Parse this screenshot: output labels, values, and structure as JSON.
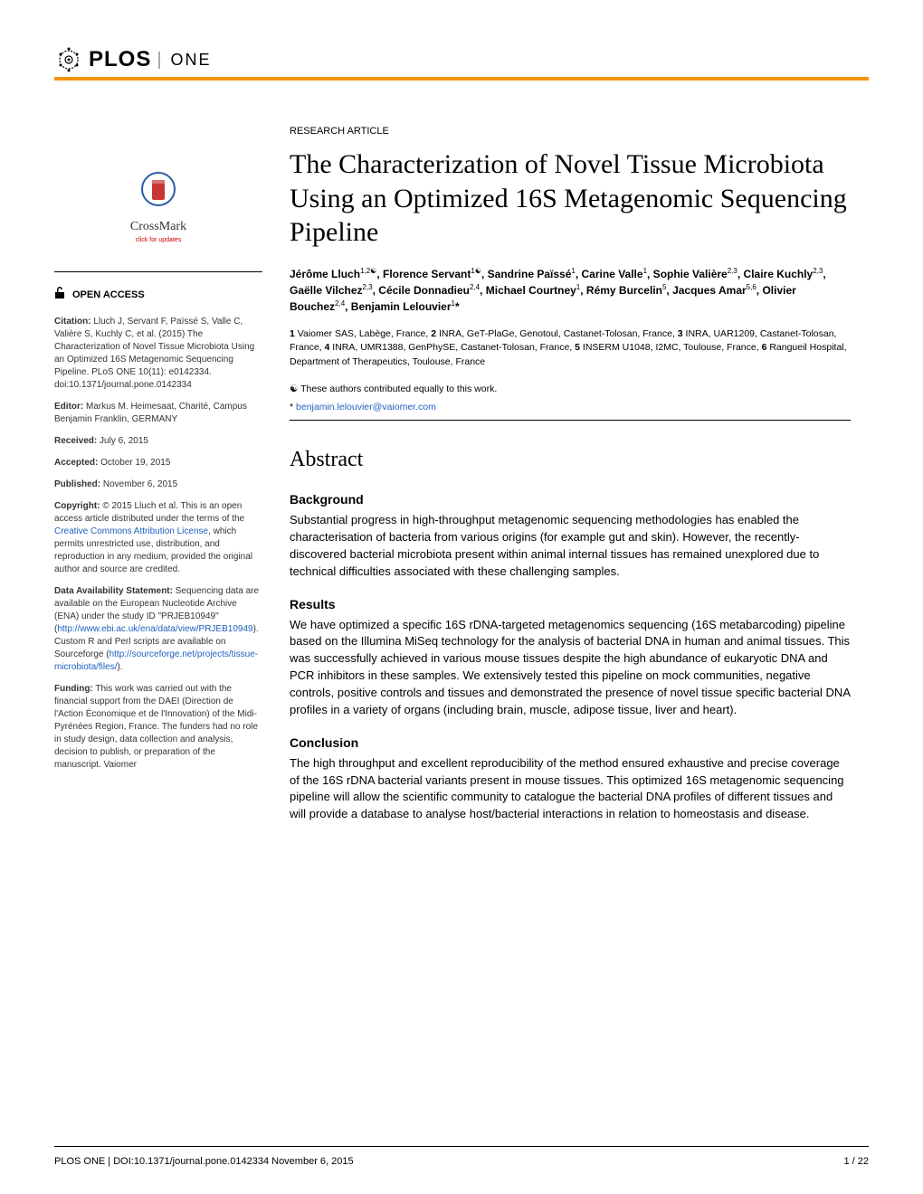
{
  "header": {
    "journal_prefix": "PLOS",
    "journal_suffix": "ONE"
  },
  "colors": {
    "orange_bar": "#f39200",
    "link": "#2060c0",
    "crossmark_red": "#c93434",
    "crossmark_blue": "#2b5ca6"
  },
  "crossmark": {
    "label": "CrossMark",
    "sublabel": "click for updates"
  },
  "open_access": {
    "label": "OPEN ACCESS"
  },
  "sidebar": {
    "citation_label": "Citation:",
    "citation_text": " Lluch J, Servant F, Païssé S, Valle C, Valière S, Kuchly C, et al. (2015) The Characterization of Novel Tissue Microbiota Using an Optimized 16S Metagenomic Sequencing Pipeline. PLoS ONE 10(11): e0142334. doi:10.1371/journal.pone.0142334",
    "editor_label": "Editor:",
    "editor_text": " Markus M. Heimesaat, Charité, Campus Benjamin Franklin, GERMANY",
    "received_label": "Received:",
    "received_text": " July 6, 2015",
    "accepted_label": "Accepted:",
    "accepted_text": " October 19, 2015",
    "published_label": "Published:",
    "published_text": " November 6, 2015",
    "copyright_label": "Copyright:",
    "copyright_text_1": " © 2015 Lluch et al. This is an open access article distributed under the terms of the ",
    "copyright_link": "Creative Commons Attribution License",
    "copyright_text_2": ", which permits unrestricted use, distribution, and reproduction in any medium, provided the original author and source are credited.",
    "data_label": "Data Availability Statement:",
    "data_text_1": " Sequencing data are available on the European Nucleotide Archive (ENA) under the study ID \"PRJEB10949\" (",
    "data_link_1": "http://www.ebi.ac.uk/ena/data/view/PRJEB10949",
    "data_text_2": "). Custom R and Perl scripts are available on Sourceforge (",
    "data_link_2": "http://sourceforge.net/projects/tissue-microbiota/files/",
    "data_text_3": ").",
    "funding_label": "Funding:",
    "funding_text": " This work was carried out with the financial support from the DAEI (Direction de l'Action Économique et de l'Innovation) of the Midi-Pyrénées Region, France. The funders had no role in study design, data collection and analysis, decision to publish, or preparation of the manuscript. Vaiomer"
  },
  "article": {
    "type": "RESEARCH ARTICLE",
    "title": "The Characterization of Novel Tissue Microbiota Using an Optimized 16S Metagenomic Sequencing Pipeline",
    "authors_html": "Jérôme Lluch<sup>1,2☯</sup>, Florence Servant<sup>1☯</sup>, Sandrine Païssé<sup>1</sup>, Carine Valle<sup>1</sup>, Sophie Valière<sup>2,3</sup>, Claire Kuchly<sup>2,3</sup>, Gaëlle Vilchez<sup>2,3</sup>, Cécile Donnadieu<sup>2,4</sup>, Michael Courtney<sup>1</sup>, Rémy Burcelin<sup>5</sup>, Jacques Amar<sup>5,6</sup>, Olivier Bouchez<sup>2,4</sup>, Benjamin Lelouvier<sup>1</sup>*",
    "affiliations_html": "<b>1</b> Vaiomer SAS, Labège, France, <b>2</b> INRA, GeT-PlaGe, Genotoul, Castanet-Tolosan, France, <b>3</b> INRA, UAR1209, Castanet-Tolosan, France, <b>4</b> INRA, UMR1388, GenPhySE, Castanet-Tolosan, France, <b>5</b> INSERM U1048, I2MC, Toulouse, France, <b>6</b> Rangueil Hospital, Department of Therapeutics, Toulouse, France",
    "equal_contribution": "☯ These authors contributed equally to this work.",
    "correspondence_prefix": "* ",
    "correspondence_email": "benjamin.lelouvier@vaiomer.com"
  },
  "abstract": {
    "heading": "Abstract",
    "sections": [
      {
        "heading": "Background",
        "text": "Substantial progress in high-throughput metagenomic sequencing methodologies has enabled the characterisation of bacteria from various origins (for example gut and skin). However, the recently-discovered bacterial microbiota present within animal internal tissues has remained unexplored due to technical difficulties associated with these challenging samples."
      },
      {
        "heading": "Results",
        "text": "We have optimized a specific 16S rDNA-targeted metagenomics sequencing (16S metabarcoding) pipeline based on the Illumina MiSeq technology for the analysis of bacterial DNA in human and animal tissues. This was successfully achieved in various mouse tissues despite the high abundance of eukaryotic DNA and PCR inhibitors in these samples. We extensively tested this pipeline on mock communities, negative controls, positive controls and tissues and demonstrated the presence of novel tissue specific bacterial DNA profiles in a variety of organs (including brain, muscle, adipose tissue, liver and heart)."
      },
      {
        "heading": "Conclusion",
        "text": "The high throughput and excellent reproducibility of the method ensured exhaustive and precise coverage of the 16S rDNA bacterial variants present in mouse tissues. This optimized 16S metagenomic sequencing pipeline will allow the scientific community to catalogue the bacterial DNA profiles of different tissues and will provide a database to analyse host/bacterial interactions in relation to homeostasis and disease."
      }
    ]
  },
  "footer": {
    "left": "PLOS ONE | DOI:10.1371/journal.pone.0142334   November 6, 2015",
    "right": "1 / 22"
  }
}
